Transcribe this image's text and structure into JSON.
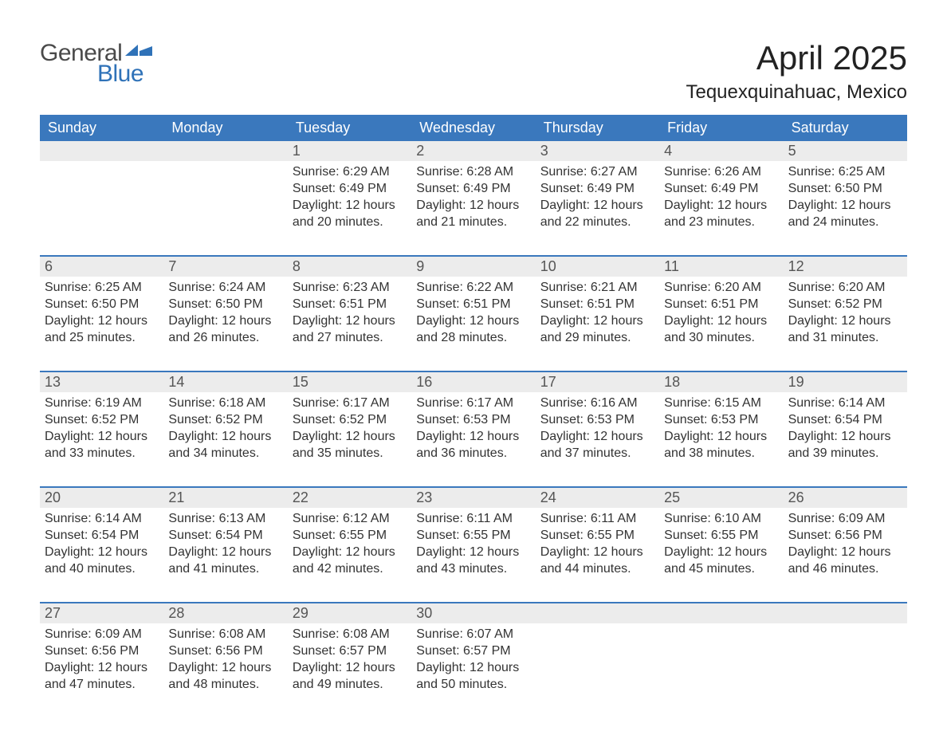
{
  "logo": {
    "word1": "General",
    "word2": "Blue",
    "flag_color": "#2f72b8"
  },
  "title": "April 2025",
  "location": "Tequexquinahuac, Mexico",
  "colors": {
    "header_bg": "#3a78bd",
    "header_fg": "#ffffff",
    "daynum_bg": "#ececec",
    "rule": "#3a78bd",
    "text": "#333333",
    "bg": "#ffffff"
  },
  "layout": {
    "columns": 7,
    "cell_font_size_pt": 12,
    "header_font_size_pt": 14,
    "title_font_size_pt": 32,
    "location_font_size_pt": 18
  },
  "weekdays": [
    "Sunday",
    "Monday",
    "Tuesday",
    "Wednesday",
    "Thursday",
    "Friday",
    "Saturday"
  ],
  "weeks": [
    [
      null,
      null,
      {
        "n": 1,
        "sunrise": "6:29 AM",
        "sunset": "6:49 PM",
        "daylight": "12 hours and 20 minutes."
      },
      {
        "n": 2,
        "sunrise": "6:28 AM",
        "sunset": "6:49 PM",
        "daylight": "12 hours and 21 minutes."
      },
      {
        "n": 3,
        "sunrise": "6:27 AM",
        "sunset": "6:49 PM",
        "daylight": "12 hours and 22 minutes."
      },
      {
        "n": 4,
        "sunrise": "6:26 AM",
        "sunset": "6:49 PM",
        "daylight": "12 hours and 23 minutes."
      },
      {
        "n": 5,
        "sunrise": "6:25 AM",
        "sunset": "6:50 PM",
        "daylight": "12 hours and 24 minutes."
      }
    ],
    [
      {
        "n": 6,
        "sunrise": "6:25 AM",
        "sunset": "6:50 PM",
        "daylight": "12 hours and 25 minutes."
      },
      {
        "n": 7,
        "sunrise": "6:24 AM",
        "sunset": "6:50 PM",
        "daylight": "12 hours and 26 minutes."
      },
      {
        "n": 8,
        "sunrise": "6:23 AM",
        "sunset": "6:51 PM",
        "daylight": "12 hours and 27 minutes."
      },
      {
        "n": 9,
        "sunrise": "6:22 AM",
        "sunset": "6:51 PM",
        "daylight": "12 hours and 28 minutes."
      },
      {
        "n": 10,
        "sunrise": "6:21 AM",
        "sunset": "6:51 PM",
        "daylight": "12 hours and 29 minutes."
      },
      {
        "n": 11,
        "sunrise": "6:20 AM",
        "sunset": "6:51 PM",
        "daylight": "12 hours and 30 minutes."
      },
      {
        "n": 12,
        "sunrise": "6:20 AM",
        "sunset": "6:52 PM",
        "daylight": "12 hours and 31 minutes."
      }
    ],
    [
      {
        "n": 13,
        "sunrise": "6:19 AM",
        "sunset": "6:52 PM",
        "daylight": "12 hours and 33 minutes."
      },
      {
        "n": 14,
        "sunrise": "6:18 AM",
        "sunset": "6:52 PM",
        "daylight": "12 hours and 34 minutes."
      },
      {
        "n": 15,
        "sunrise": "6:17 AM",
        "sunset": "6:52 PM",
        "daylight": "12 hours and 35 minutes."
      },
      {
        "n": 16,
        "sunrise": "6:17 AM",
        "sunset": "6:53 PM",
        "daylight": "12 hours and 36 minutes."
      },
      {
        "n": 17,
        "sunrise": "6:16 AM",
        "sunset": "6:53 PM",
        "daylight": "12 hours and 37 minutes."
      },
      {
        "n": 18,
        "sunrise": "6:15 AM",
        "sunset": "6:53 PM",
        "daylight": "12 hours and 38 minutes."
      },
      {
        "n": 19,
        "sunrise": "6:14 AM",
        "sunset": "6:54 PM",
        "daylight": "12 hours and 39 minutes."
      }
    ],
    [
      {
        "n": 20,
        "sunrise": "6:14 AM",
        "sunset": "6:54 PM",
        "daylight": "12 hours and 40 minutes."
      },
      {
        "n": 21,
        "sunrise": "6:13 AM",
        "sunset": "6:54 PM",
        "daylight": "12 hours and 41 minutes."
      },
      {
        "n": 22,
        "sunrise": "6:12 AM",
        "sunset": "6:55 PM",
        "daylight": "12 hours and 42 minutes."
      },
      {
        "n": 23,
        "sunrise": "6:11 AM",
        "sunset": "6:55 PM",
        "daylight": "12 hours and 43 minutes."
      },
      {
        "n": 24,
        "sunrise": "6:11 AM",
        "sunset": "6:55 PM",
        "daylight": "12 hours and 44 minutes."
      },
      {
        "n": 25,
        "sunrise": "6:10 AM",
        "sunset": "6:55 PM",
        "daylight": "12 hours and 45 minutes."
      },
      {
        "n": 26,
        "sunrise": "6:09 AM",
        "sunset": "6:56 PM",
        "daylight": "12 hours and 46 minutes."
      }
    ],
    [
      {
        "n": 27,
        "sunrise": "6:09 AM",
        "sunset": "6:56 PM",
        "daylight": "12 hours and 47 minutes."
      },
      {
        "n": 28,
        "sunrise": "6:08 AM",
        "sunset": "6:56 PM",
        "daylight": "12 hours and 48 minutes."
      },
      {
        "n": 29,
        "sunrise": "6:08 AM",
        "sunset": "6:57 PM",
        "daylight": "12 hours and 49 minutes."
      },
      {
        "n": 30,
        "sunrise": "6:07 AM",
        "sunset": "6:57 PM",
        "daylight": "12 hours and 50 minutes."
      },
      null,
      null,
      null
    ]
  ],
  "labels": {
    "sunrise": "Sunrise: ",
    "sunset": "Sunset: ",
    "daylight": "Daylight: "
  }
}
